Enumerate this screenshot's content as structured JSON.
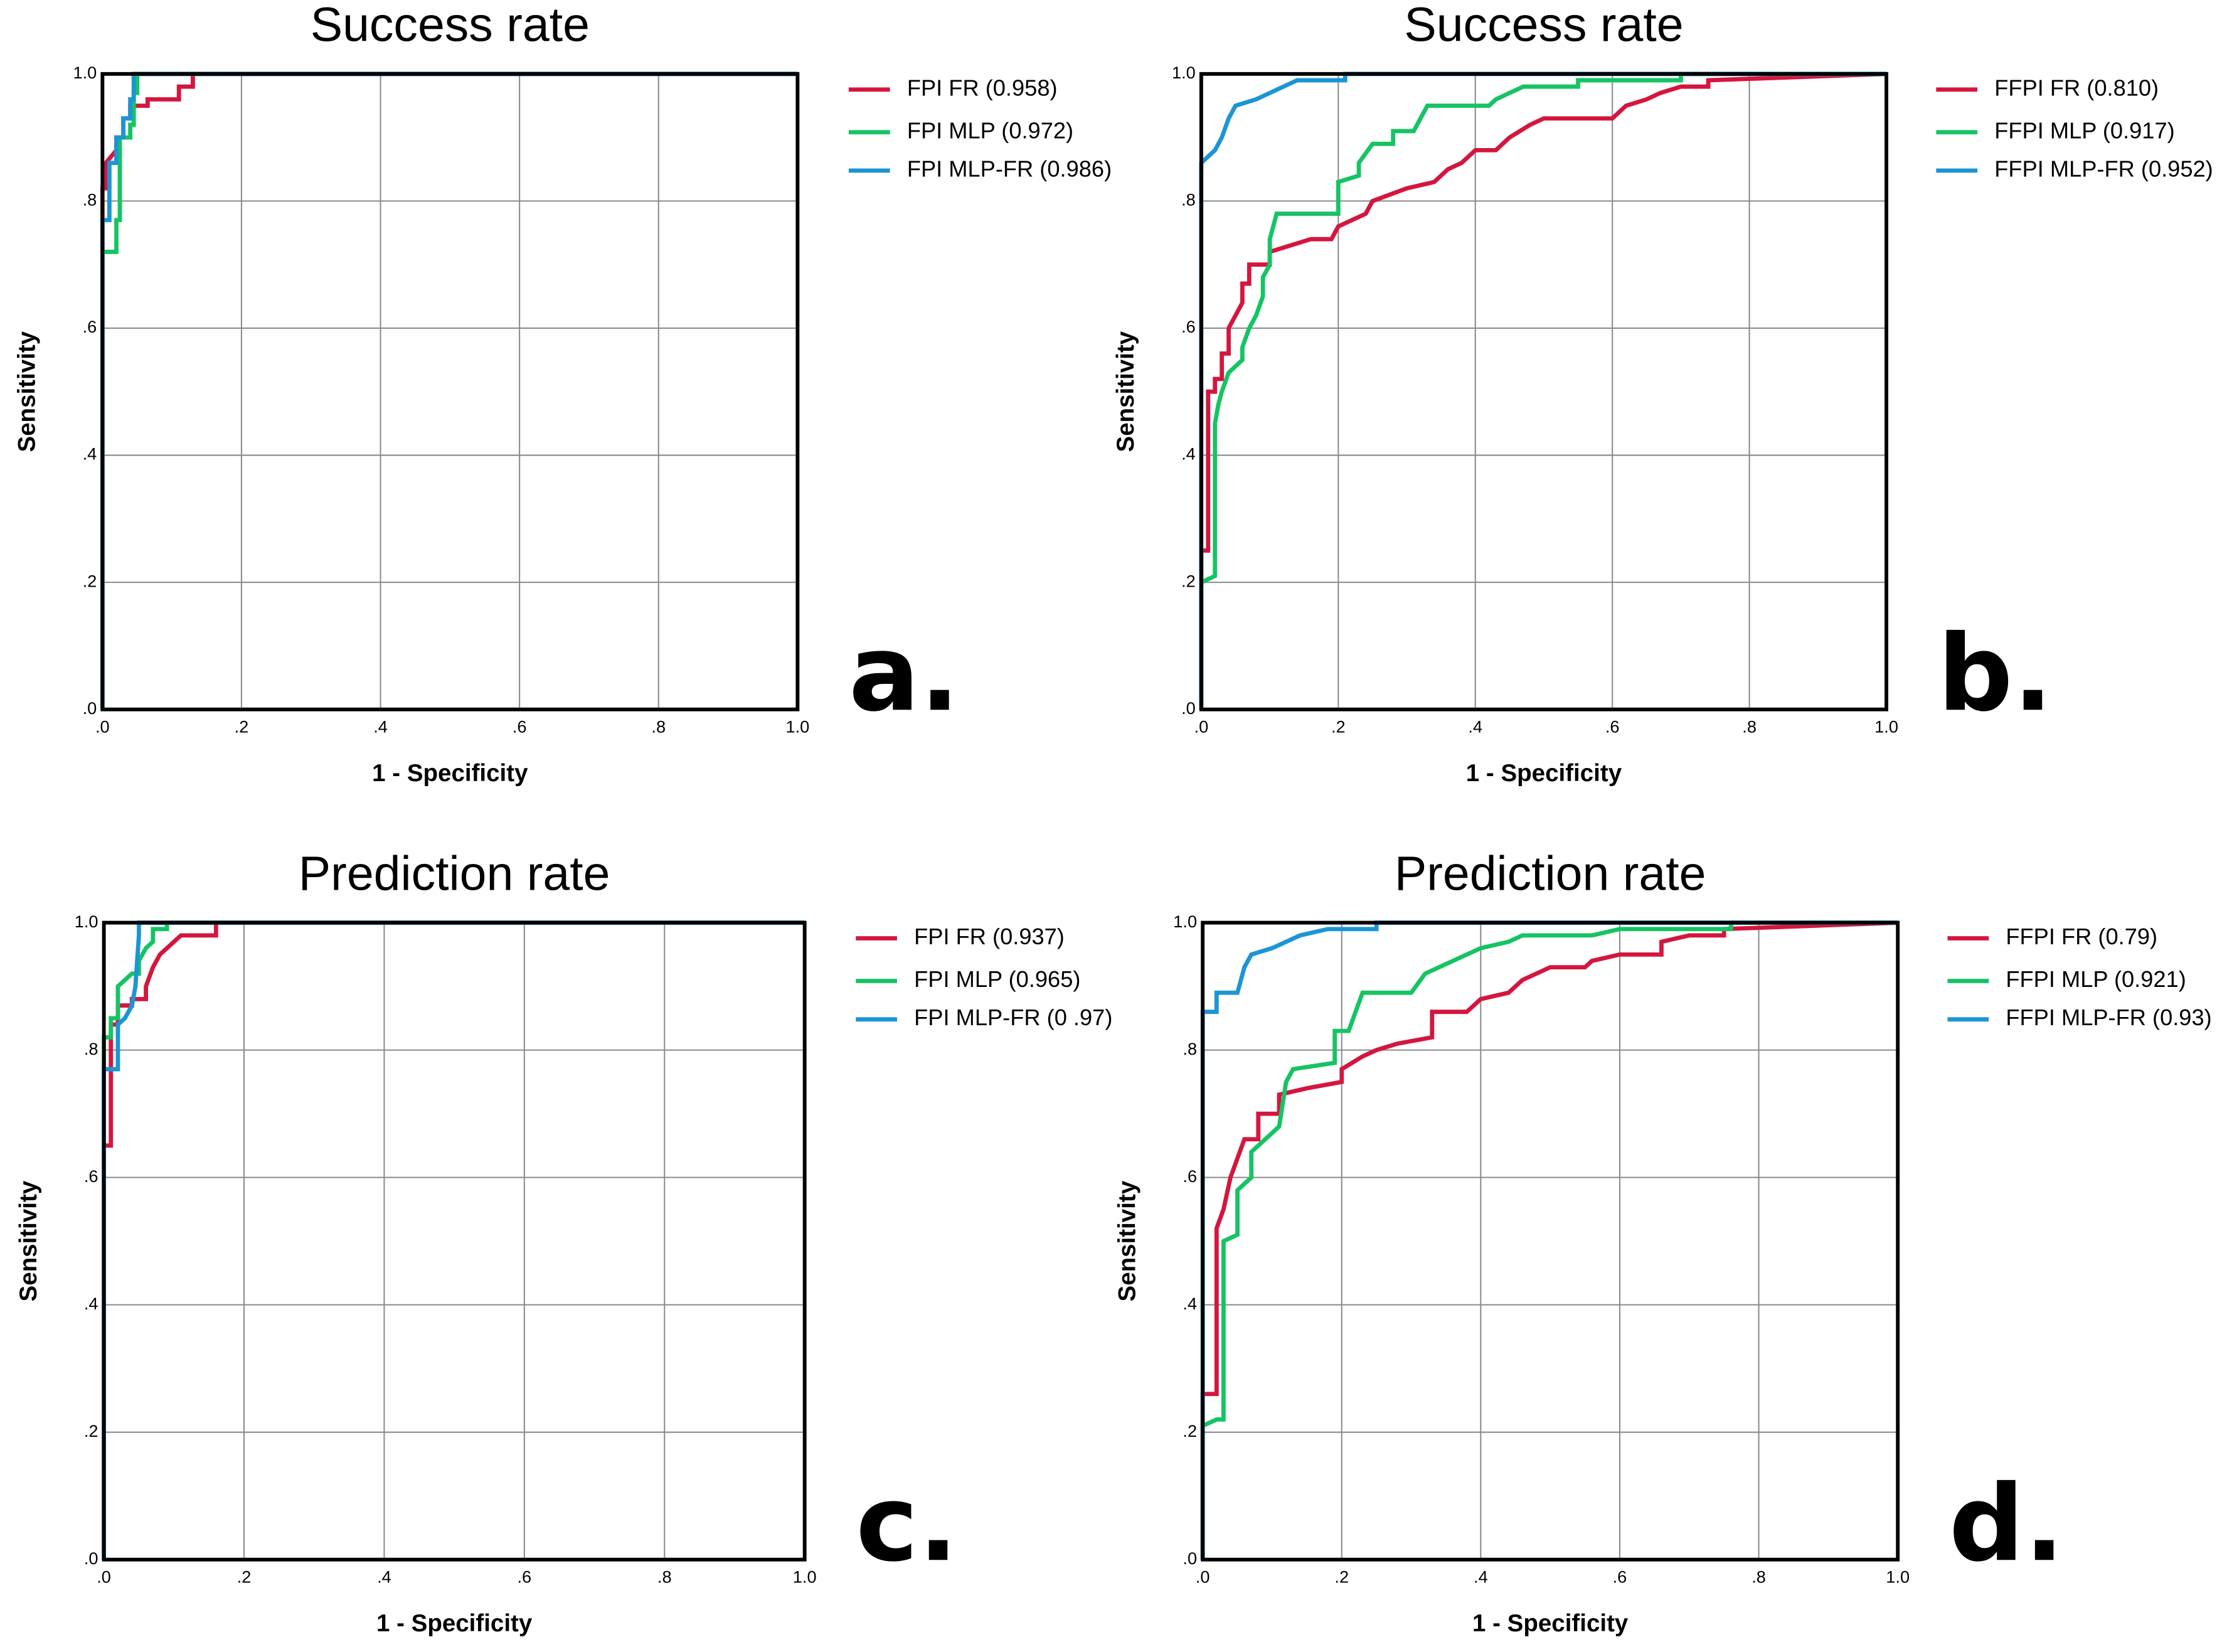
{
  "chart_data": [
    {
      "type": "line",
      "title": "Success rate",
      "xlabel": "1 - Specificity",
      "ylabel": "Sensitivity",
      "panel_label": "a.",
      "xlim": [
        0,
        1
      ],
      "ylim": [
        0,
        1
      ],
      "grid": true,
      "xticks": [
        {
          "value": 0,
          "label": ".0"
        },
        {
          "value": 0.2,
          "label": ".2"
        },
        {
          "value": 0.4,
          "label": ".4"
        },
        {
          "value": 0.6,
          "label": ".6"
        },
        {
          "value": 0.8,
          "label": ".8"
        },
        {
          "value": 1,
          "label": "1.0"
        }
      ],
      "yticks": [
        {
          "value": 0,
          "label": ".0"
        },
        {
          "value": 0.2,
          "label": ".2"
        },
        {
          "value": 0.4,
          "label": ".4"
        },
        {
          "value": 0.6,
          "label": ".6"
        },
        {
          "value": 0.8,
          "label": ".8"
        },
        {
          "value": 1,
          "label": "1.0"
        }
      ],
      "series": [
        {
          "name": "FPI FR (0.958)",
          "color": "#d4163f",
          "x": [
            0,
            0,
            0.005,
            0.005,
            0.02,
            0.02,
            0.03,
            0.03,
            0.04,
            0.04,
            0.065,
            0.065,
            0.11,
            0.11,
            0.13,
            0.13,
            1
          ],
          "values": [
            0,
            0.82,
            0.82,
            0.86,
            0.88,
            0.9,
            0.9,
            0.93,
            0.93,
            0.95,
            0.95,
            0.96,
            0.96,
            0.98,
            0.98,
            1,
            1
          ]
        },
        {
          "name": "FPI MLP (0.972)",
          "color": "#15c463",
          "x": [
            0,
            0,
            0.02,
            0.02,
            0.025,
            0.025,
            0.04,
            0.04,
            0.045,
            0.045,
            0.05,
            0.05,
            1
          ],
          "values": [
            0,
            0.72,
            0.72,
            0.77,
            0.77,
            0.9,
            0.9,
            0.92,
            0.92,
            0.97,
            0.97,
            1,
            1
          ]
        },
        {
          "name": "FPI MLP-FR (0.986)",
          "color": "#1c95d4",
          "x": [
            0,
            0,
            0.01,
            0.01,
            0.02,
            0.02,
            0.03,
            0.03,
            0.04,
            0.04,
            0.045,
            0.045,
            1
          ],
          "values": [
            0,
            0.77,
            0.77,
            0.86,
            0.86,
            0.9,
            0.9,
            0.93,
            0.93,
            0.96,
            0.96,
            1,
            1
          ]
        }
      ]
    },
    {
      "type": "line",
      "title": "Success rate",
      "xlabel": "1 - Specificity",
      "ylabel": "Sensitivity",
      "panel_label": "b.",
      "xlim": [
        0,
        1
      ],
      "ylim": [
        0,
        1
      ],
      "grid": true,
      "xticks": [
        {
          "value": 0,
          "label": ".0"
        },
        {
          "value": 0.2,
          "label": ".2"
        },
        {
          "value": 0.4,
          "label": ".4"
        },
        {
          "value": 0.6,
          "label": ".6"
        },
        {
          "value": 0.8,
          "label": ".8"
        },
        {
          "value": 1,
          "label": "1.0"
        }
      ],
      "yticks": [
        {
          "value": 0,
          "label": ".0"
        },
        {
          "value": 0.2,
          "label": ".2"
        },
        {
          "value": 0.4,
          "label": ".4"
        },
        {
          "value": 0.6,
          "label": ".6"
        },
        {
          "value": 0.8,
          "label": ".8"
        },
        {
          "value": 1,
          "label": "1.0"
        }
      ],
      "series": [
        {
          "name": "FFPI FR (0.810)",
          "color": "#d4163f",
          "x": [
            0,
            0,
            0.01,
            0.01,
            0.02,
            0.02,
            0.03,
            0.03,
            0.04,
            0.04,
            0.05,
            0.06,
            0.06,
            0.07,
            0.07,
            0.1,
            0.1,
            0.13,
            0.16,
            0.19,
            0.2,
            0.24,
            0.25,
            0.3,
            0.34,
            0.36,
            0.38,
            0.4,
            0.43,
            0.45,
            0.48,
            0.5,
            0.6,
            0.62,
            0.65,
            0.67,
            0.7,
            0.74,
            0.74,
            1
          ],
          "values": [
            0,
            0.25,
            0.25,
            0.5,
            0.5,
            0.52,
            0.52,
            0.56,
            0.56,
            0.6,
            0.62,
            0.64,
            0.67,
            0.67,
            0.7,
            0.7,
            0.72,
            0.73,
            0.74,
            0.74,
            0.76,
            0.78,
            0.8,
            0.82,
            0.83,
            0.85,
            0.86,
            0.88,
            0.88,
            0.9,
            0.92,
            0.93,
            0.93,
            0.95,
            0.96,
            0.97,
            0.98,
            0.98,
            0.99,
            1
          ]
        },
        {
          "name": "FFPI MLP (0.917)",
          "color": "#15c463",
          "x": [
            0,
            0,
            0.02,
            0.02,
            0.025,
            0.03,
            0.04,
            0.06,
            0.06,
            0.07,
            0.08,
            0.09,
            0.09,
            0.1,
            0.1,
            0.11,
            0.2,
            0.2,
            0.23,
            0.23,
            0.25,
            0.28,
            0.28,
            0.31,
            0.32,
            0.33,
            0.42,
            0.43,
            0.45,
            0.47,
            0.55,
            0.55,
            0.7,
            0.7,
            1
          ],
          "values": [
            0,
            0.2,
            0.21,
            0.45,
            0.48,
            0.5,
            0.53,
            0.55,
            0.57,
            0.6,
            0.62,
            0.65,
            0.68,
            0.7,
            0.74,
            0.78,
            0.78,
            0.83,
            0.84,
            0.86,
            0.89,
            0.89,
            0.91,
            0.91,
            0.93,
            0.95,
            0.95,
            0.96,
            0.97,
            0.98,
            0.98,
            0.99,
            0.99,
            1,
            1
          ]
        },
        {
          "name": "FFPI MLP-FR (0.952)",
          "color": "#1c95d4",
          "x": [
            0,
            0,
            0.01,
            0.02,
            0.03,
            0.04,
            0.05,
            0.08,
            0.1,
            0.12,
            0.14,
            0.21,
            0.21,
            1
          ],
          "values": [
            0,
            0.86,
            0.87,
            0.88,
            0.9,
            0.93,
            0.95,
            0.96,
            0.97,
            0.98,
            0.99,
            0.99,
            1,
            1
          ]
        }
      ]
    },
    {
      "type": "line",
      "title": "Prediction rate",
      "xlabel": "1 - Specificity",
      "ylabel": "Sensitivity",
      "panel_label": "c.",
      "xlim": [
        0,
        1
      ],
      "ylim": [
        0,
        1
      ],
      "grid": true,
      "xticks": [
        {
          "value": 0,
          "label": ".0"
        },
        {
          "value": 0.2,
          "label": ".2"
        },
        {
          "value": 0.4,
          "label": ".4"
        },
        {
          "value": 0.6,
          "label": ".6"
        },
        {
          "value": 0.8,
          "label": ".8"
        },
        {
          "value": 1,
          "label": "1.0"
        }
      ],
      "yticks": [
        {
          "value": 0,
          "label": ".0"
        },
        {
          "value": 0.2,
          "label": ".2"
        },
        {
          "value": 0.4,
          "label": ".4"
        },
        {
          "value": 0.6,
          "label": ".6"
        },
        {
          "value": 0.8,
          "label": ".8"
        },
        {
          "value": 1,
          "label": "1.0"
        }
      ],
      "series": [
        {
          "name": "FPI FR (0.937)",
          "color": "#d4163f",
          "x": [
            0,
            0,
            0.01,
            0.01,
            0.02,
            0.02,
            0.04,
            0.04,
            0.06,
            0.06,
            0.07,
            0.08,
            0.09,
            0.1,
            0.11,
            0.16,
            0.16,
            1
          ],
          "values": [
            0,
            0.65,
            0.65,
            0.84,
            0.84,
            0.87,
            0.87,
            0.88,
            0.88,
            0.9,
            0.93,
            0.95,
            0.96,
            0.97,
            0.98,
            0.98,
            1,
            1
          ]
        },
        {
          "name": "FPI MLP (0.965)",
          "color": "#15c463",
          "x": [
            0,
            0,
            0.01,
            0.01,
            0.02,
            0.02,
            0.03,
            0.04,
            0.05,
            0.05,
            0.06,
            0.07,
            0.07,
            0.09,
            0.09,
            1
          ],
          "values": [
            0,
            0.82,
            0.82,
            0.85,
            0.85,
            0.9,
            0.91,
            0.92,
            0.92,
            0.94,
            0.96,
            0.97,
            0.99,
            0.99,
            1,
            1
          ]
        },
        {
          "name": "FPI MLP-FR (0 .97)",
          "color": "#1c95d4",
          "x": [
            0,
            0,
            0.02,
            0.02,
            0.03,
            0.04,
            0.045,
            0.05,
            0.05,
            1
          ],
          "values": [
            0,
            0.77,
            0.77,
            0.84,
            0.85,
            0.87,
            0.9,
            0.98,
            1,
            1
          ]
        }
      ]
    },
    {
      "type": "line",
      "title": "Prediction rate",
      "xlabel": "1 - Specificity",
      "ylabel": "Sensitivity",
      "panel_label": "d.",
      "xlim": [
        0,
        1
      ],
      "ylim": [
        0,
        1
      ],
      "grid": true,
      "xticks": [
        {
          "value": 0,
          "label": ".0"
        },
        {
          "value": 0.2,
          "label": ".2"
        },
        {
          "value": 0.4,
          "label": ".4"
        },
        {
          "value": 0.6,
          "label": ".6"
        },
        {
          "value": 0.8,
          "label": ".8"
        },
        {
          "value": 1,
          "label": "1.0"
        }
      ],
      "yticks": [
        {
          "value": 0,
          "label": ".0"
        },
        {
          "value": 0.2,
          "label": ".2"
        },
        {
          "value": 0.4,
          "label": ".4"
        },
        {
          "value": 0.6,
          "label": ".6"
        },
        {
          "value": 0.8,
          "label": ".8"
        },
        {
          "value": 1,
          "label": "1.0"
        }
      ],
      "series": [
        {
          "name": "FFPI FR (0.79)",
          "color": "#d4163f",
          "x": [
            0,
            0,
            0.02,
            0.02,
            0.03,
            0.04,
            0.05,
            0.06,
            0.08,
            0.08,
            0.11,
            0.11,
            0.15,
            0.2,
            0.2,
            0.23,
            0.25,
            0.28,
            0.33,
            0.33,
            0.38,
            0.4,
            0.44,
            0.46,
            0.5,
            0.55,
            0.56,
            0.6,
            0.66,
            0.66,
            0.7,
            0.75,
            0.75,
            1
          ],
          "values": [
            0,
            0.26,
            0.26,
            0.52,
            0.55,
            0.6,
            0.63,
            0.66,
            0.66,
            0.7,
            0.7,
            0.73,
            0.74,
            0.75,
            0.77,
            0.79,
            0.8,
            0.81,
            0.82,
            0.86,
            0.86,
            0.88,
            0.89,
            0.91,
            0.93,
            0.93,
            0.94,
            0.95,
            0.95,
            0.97,
            0.98,
            0.98,
            0.99,
            1
          ]
        },
        {
          "name": "FFPI MLP (0.921)",
          "color": "#15c463",
          "x": [
            0,
            0,
            0.02,
            0.03,
            0.03,
            0.05,
            0.05,
            0.07,
            0.07,
            0.09,
            0.11,
            0.12,
            0.13,
            0.19,
            0.19,
            0.21,
            0.22,
            0.23,
            0.3,
            0.32,
            0.36,
            0.4,
            0.44,
            0.46,
            0.56,
            0.6,
            0.76,
            0.76,
            1
          ],
          "values": [
            0,
            0.21,
            0.22,
            0.22,
            0.5,
            0.51,
            0.58,
            0.6,
            0.64,
            0.66,
            0.68,
            0.75,
            0.77,
            0.78,
            0.83,
            0.83,
            0.86,
            0.89,
            0.89,
            0.92,
            0.94,
            0.96,
            0.97,
            0.98,
            0.98,
            0.99,
            0.99,
            1,
            1
          ]
        },
        {
          "name": "FFPI MLP-FR (0.93)",
          "color": "#1c95d4",
          "x": [
            0,
            0,
            0.02,
            0.02,
            0.05,
            0.06,
            0.07,
            0.1,
            0.14,
            0.18,
            0.25,
            0.25,
            1
          ],
          "values": [
            0,
            0.86,
            0.86,
            0.89,
            0.89,
            0.93,
            0.95,
            0.96,
            0.98,
            0.99,
            0.99,
            1,
            1
          ]
        }
      ]
    }
  ]
}
